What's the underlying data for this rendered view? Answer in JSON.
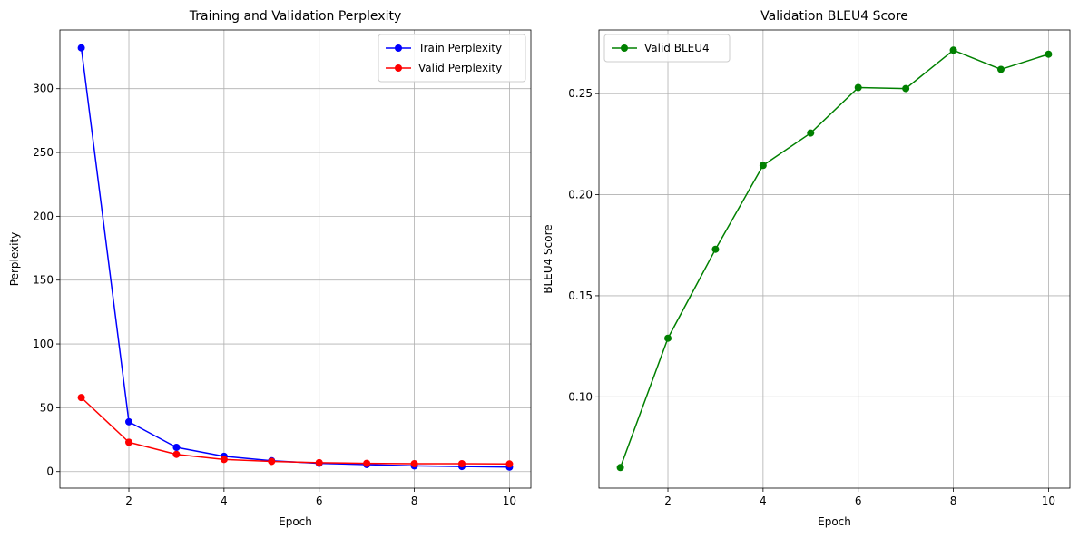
{
  "chart_data": [
    {
      "type": "line",
      "title": "Training and Validation Perplexity",
      "xlabel": "Epoch",
      "ylabel": "Perplexity",
      "x": [
        1,
        2,
        3,
        4,
        5,
        6,
        7,
        8,
        9,
        10
      ],
      "xlim": [
        0.55,
        10.45
      ],
      "ylim": [
        -13,
        346
      ],
      "xticks": [
        2,
        4,
        6,
        8,
        10
      ],
      "yticks": [
        0,
        50,
        100,
        150,
        200,
        250,
        300
      ],
      "ytick_labels": [
        "0",
        "50",
        "100",
        "150",
        "200",
        "250",
        "300"
      ],
      "grid": true,
      "legend": "top-right",
      "series": [
        {
          "name": "Train Perplexity",
          "color": "#0000ff",
          "values": [
            332,
            39,
            19,
            12,
            8.5,
            6.5,
            5.5,
            4.5,
            4,
            3.5
          ]
        },
        {
          "name": "Valid Perplexity",
          "color": "#ff0000",
          "values": [
            58,
            23,
            13.5,
            9.5,
            8,
            7,
            6.5,
            6.2,
            6.2,
            6
          ]
        }
      ]
    },
    {
      "type": "line",
      "title": "Validation BLEU4 Score",
      "xlabel": "Epoch",
      "ylabel": "BLEU4 Score",
      "x": [
        1,
        2,
        3,
        4,
        5,
        6,
        7,
        8,
        9,
        10
      ],
      "xlim": [
        0.55,
        10.45
      ],
      "ylim": [
        0.0548,
        0.2815
      ],
      "xticks": [
        2,
        4,
        6,
        8,
        10
      ],
      "yticks": [
        0.1,
        0.15,
        0.2,
        0.25
      ],
      "ytick_labels": [
        "0.10",
        "0.15",
        "0.20",
        "0.25"
      ],
      "grid": true,
      "legend": "top-left",
      "series": [
        {
          "name": "Valid BLEU4",
          "color": "#008000",
          "values": [
            0.065,
            0.129,
            0.173,
            0.2145,
            0.2305,
            0.253,
            0.2525,
            0.2715,
            0.262,
            0.2695
          ]
        }
      ]
    }
  ]
}
